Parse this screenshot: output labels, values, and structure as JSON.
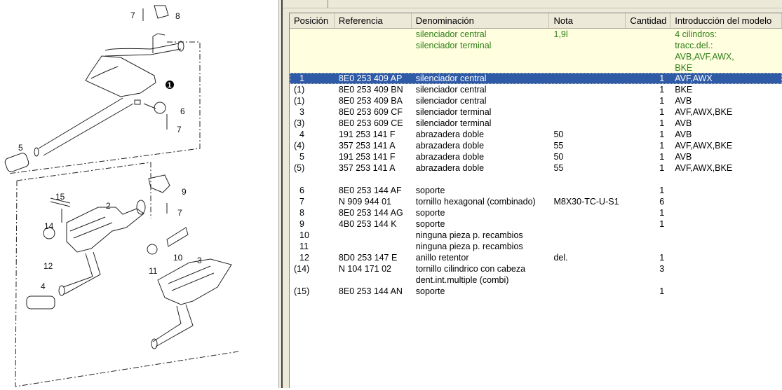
{
  "diagram": {
    "callouts": [
      "7",
      "8",
      "1",
      "6",
      "7",
      "5",
      "15",
      "2",
      "9",
      "7",
      "14",
      "12",
      "10",
      "11",
      "3",
      "4"
    ]
  },
  "table": {
    "headers": [
      "Posición",
      "Referencia",
      "Denominación",
      "Nota",
      "Cantidad",
      "Introducción del modelo"
    ],
    "info": {
      "denominacion": "silenciador central\nsilenciador terminal",
      "nota": "1,9l",
      "introduccion": "4 cilindros:\ntracc.del.:\nAVB,AVF,AWX,\nBKE"
    },
    "rows": [
      {
        "pos": "1",
        "ref": "8E0 253 409 AP",
        "den": "silenciador central",
        "nota": "",
        "qty": "1",
        "intro": "AVF,AWX",
        "selected": true
      },
      {
        "pos": "(1)",
        "ref": "8E0 253 409 BN",
        "den": "silenciador central",
        "nota": "",
        "qty": "1",
        "intro": "BKE"
      },
      {
        "pos": "(1)",
        "ref": "8E0 253 409 BA",
        "den": "silenciador central",
        "nota": "",
        "qty": "1",
        "intro": "AVB"
      },
      {
        "pos": "3",
        "ref": "8E0 253 609 CF",
        "den": "silenciador terminal",
        "nota": "",
        "qty": "1",
        "intro": "AVF,AWX,BKE"
      },
      {
        "pos": "(3)",
        "ref": "8E0 253 609 CE",
        "den": "silenciador terminal",
        "nota": "",
        "qty": "1",
        "intro": "AVB"
      },
      {
        "pos": "4",
        "ref": "191 253 141 F",
        "den": "abrazadera doble",
        "nota": "50",
        "qty": "1",
        "intro": "AVB"
      },
      {
        "pos": "(4)",
        "ref": "357 253 141 A",
        "den": "abrazadera doble",
        "nota": "55",
        "qty": "1",
        "intro": "AVF,AWX,BKE"
      },
      {
        "pos": "5",
        "ref": "191 253 141 F",
        "den": "abrazadera doble",
        "nota": "50",
        "qty": "1",
        "intro": "AVB"
      },
      {
        "pos": "(5)",
        "ref": "357 253 141 A",
        "den": "abrazadera doble",
        "nota": "55",
        "qty": "1",
        "intro": "AVF,AWX,BKE"
      },
      {
        "pos": "",
        "ref": "",
        "den": "",
        "nota": "",
        "qty": "",
        "intro": ""
      },
      {
        "pos": "6",
        "ref": "8E0 253 144 AF",
        "den": "soporte",
        "nota": "",
        "qty": "1",
        "intro": ""
      },
      {
        "pos": "7",
        "ref": "N  909 944 01",
        "den": "tornillo hexagonal (combinado)",
        "nota": "M8X30-TC-U-S1",
        "qty": "6",
        "intro": ""
      },
      {
        "pos": "8",
        "ref": "8E0 253 144 AG",
        "den": "soporte",
        "nota": "",
        "qty": "1",
        "intro": ""
      },
      {
        "pos": "9",
        "ref": "4B0 253 144 K",
        "den": "soporte",
        "nota": "",
        "qty": "1",
        "intro": ""
      },
      {
        "pos": "10",
        "ref": "",
        "den": "ninguna pieza p. recambios",
        "nota": "",
        "qty": "",
        "intro": ""
      },
      {
        "pos": "11",
        "ref": "",
        "den": "ninguna pieza p. recambios",
        "nota": "",
        "qty": "",
        "intro": ""
      },
      {
        "pos": "12",
        "ref": "8D0 253 147 E",
        "den": "anillo retentor",
        "nota": "del.",
        "qty": "1",
        "intro": ""
      },
      {
        "pos": "(14)",
        "ref": "N  104 171 02",
        "den": "tornillo cilindrico con cabeza\ndent.int.multiple (combi)",
        "nota": "",
        "qty": "3",
        "intro": ""
      },
      {
        "pos": "(15)",
        "ref": "8E0 253 144 AN",
        "den": "soporte",
        "nota": "",
        "qty": "1",
        "intro": ""
      }
    ]
  },
  "colors": {
    "selected_row": "#2e5aa6",
    "info_bg": "#ffffe0",
    "info_text": "#2f7d16"
  }
}
